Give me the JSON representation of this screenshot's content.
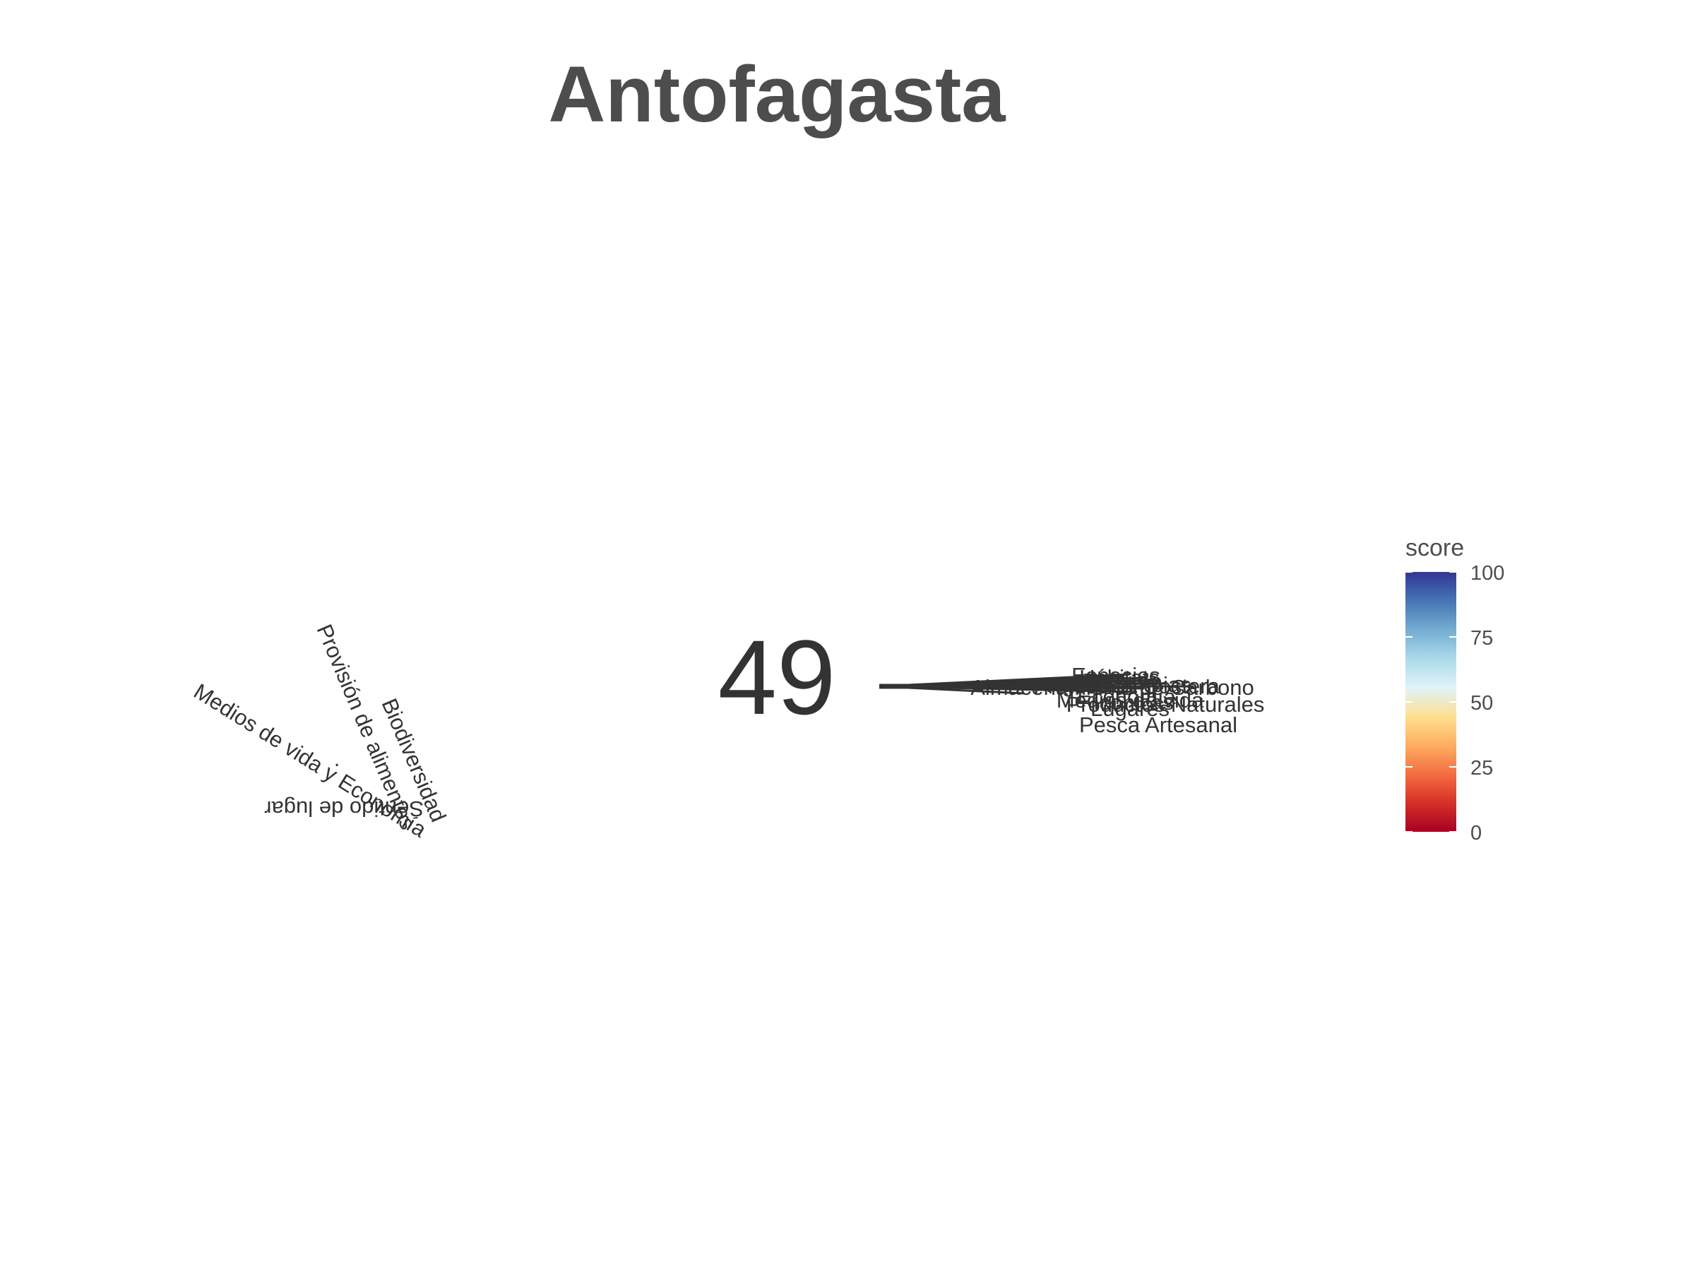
{
  "chart_data": {
    "type": "flower",
    "title": "Antofagasta",
    "center_score": "49",
    "legend": {
      "title": "score",
      "ticks": [
        "0",
        "25",
        "50",
        "75",
        "100"
      ],
      "scale": [
        0,
        100
      ],
      "colors": [
        "#a50026",
        "#d73027",
        "#f46d43",
        "#fdae61",
        "#fee090",
        "#e0f3f8",
        "#abd9e9",
        "#74add1",
        "#4575b4",
        "#313695"
      ],
      "placement": "right"
    },
    "petal_color": "#333333",
    "left_labels": [
      "Medios de vida y Economía",
      "Provisión de alimentos",
      "Biodiversidad",
      "Sentido de lugar",
      "."
    ],
    "right_labels": [
      "Especies",
      "Hábitats",
      "Turismo",
      "Aguas Limpias",
      "Almacenamiento de Carbono",
      "Protección Costera",
      "Productos Naturales",
      "Medios de vida",
      "Economía",
      "Iconicas",
      "Lugares",
      "Pesca Artesanal"
    ]
  }
}
